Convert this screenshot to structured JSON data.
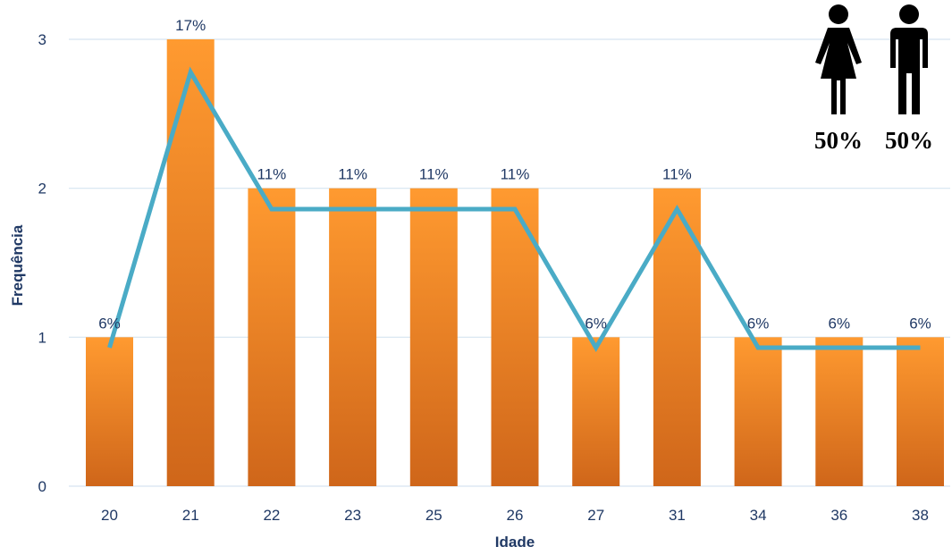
{
  "chart_data": {
    "type": "bar",
    "xlabel": "Idade",
    "ylabel": "Frequência",
    "ylim": [
      0,
      3
    ],
    "yticks": [
      "0",
      "1",
      "2",
      "3"
    ],
    "grid": true,
    "categories": [
      "20",
      "21",
      "22",
      "23",
      "25",
      "26",
      "27",
      "31",
      "34",
      "36",
      "38"
    ],
    "values": [
      1,
      3,
      2,
      2,
      2,
      2,
      1,
      2,
      1,
      1,
      1
    ],
    "data_labels": [
      "6%",
      "17%",
      "11%",
      "11%",
      "11%",
      "11%",
      "6%",
      "11%",
      "6%",
      "6%",
      "6%"
    ],
    "line": [
      0.93,
      2.78,
      1.86,
      1.86,
      1.86,
      1.86,
      0.93,
      1.86,
      0.93,
      0.93,
      0.93
    ],
    "colors": {
      "bar_top": "#ff9a30",
      "bar_bottom": "#cf661a",
      "line": "#4aabc6",
      "label": "#1f3864",
      "grid": "#d6e4f0"
    }
  },
  "gender": {
    "female": {
      "icon": "female-icon",
      "percent": "50%"
    },
    "male": {
      "icon": "male-icon",
      "percent": "50%"
    }
  }
}
